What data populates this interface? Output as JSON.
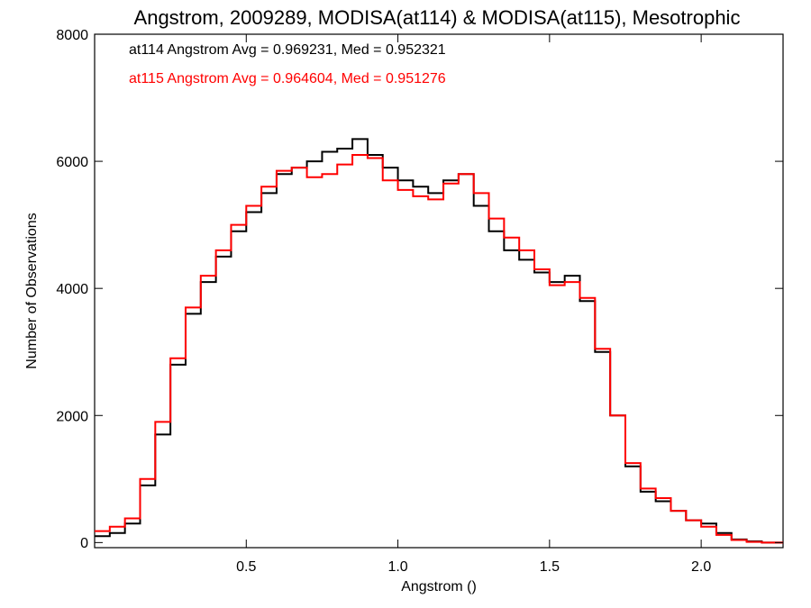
{
  "chart_data": {
    "type": "line",
    "step": true,
    "title": "Angstrom, 2009289, MODISA(at114) & MODISA(at115), Mesotrophic",
    "xlabel": "Angstrom ()",
    "ylabel": "Number of Observations",
    "xlim": [
      0.0,
      2.27
    ],
    "ylim": [
      -80,
      8000
    ],
    "xticks": [
      0.5,
      1.0,
      1.5,
      2.0
    ],
    "xtick_labels": [
      "0.5",
      "1.0",
      "1.5",
      "2.0"
    ],
    "yticks": [
      0,
      2000,
      4000,
      6000,
      8000
    ],
    "ytick_labels": [
      "0",
      "2000",
      "4000",
      "6000",
      "8000"
    ],
    "grid": false,
    "annotations": [
      {
        "text": "at114 Angstrom Avg = 0.969231, Med = 0.952321",
        "color": "#000000"
      },
      {
        "text": "at115 Angstrom Avg = 0.964604, Med = 0.951276",
        "color": "#ff0000"
      }
    ],
    "series": [
      {
        "color": "#000000",
        "x": [
          0.0,
          0.05,
          0.1,
          0.15,
          0.2,
          0.25,
          0.3,
          0.35,
          0.4,
          0.45,
          0.5,
          0.55,
          0.6,
          0.65,
          0.7,
          0.75,
          0.8,
          0.85,
          0.9,
          0.95,
          1.0,
          1.05,
          1.1,
          1.15,
          1.2,
          1.25,
          1.3,
          1.35,
          1.4,
          1.45,
          1.5,
          1.55,
          1.6,
          1.65,
          1.7,
          1.75,
          1.8,
          1.85,
          1.9,
          1.95,
          2.0,
          2.05,
          2.1,
          2.15,
          2.2,
          2.27
        ],
        "y": [
          100,
          150,
          300,
          900,
          1700,
          2800,
          3600,
          4100,
          4500,
          4900,
          5200,
          5500,
          5800,
          5900,
          6000,
          6150,
          6200,
          6350,
          6100,
          5900,
          5700,
          5600,
          5500,
          5700,
          5800,
          5300,
          4900,
          4600,
          4450,
          4250,
          4100,
          4200,
          3800,
          3000,
          2000,
          1200,
          800,
          650,
          500,
          350,
          300,
          150,
          50,
          20,
          0,
          0
        ]
      },
      {
        "color": "#ff0000",
        "x": [
          0.0,
          0.05,
          0.1,
          0.15,
          0.2,
          0.25,
          0.3,
          0.35,
          0.4,
          0.45,
          0.5,
          0.55,
          0.6,
          0.65,
          0.7,
          0.75,
          0.8,
          0.85,
          0.9,
          0.95,
          1.0,
          1.05,
          1.1,
          1.15,
          1.2,
          1.25,
          1.3,
          1.35,
          1.4,
          1.45,
          1.5,
          1.55,
          1.6,
          1.65,
          1.7,
          1.75,
          1.8,
          1.85,
          1.9,
          1.95,
          2.0,
          2.05,
          2.1,
          2.15,
          2.2,
          2.27
        ],
        "y": [
          180,
          250,
          380,
          1000,
          1900,
          2900,
          3700,
          4200,
          4600,
          5000,
          5300,
          5600,
          5850,
          5900,
          5750,
          5800,
          5950,
          6100,
          6050,
          5700,
          5550,
          5450,
          5400,
          5650,
          5800,
          5500,
          5100,
          4800,
          4600,
          4300,
          4050,
          4100,
          3850,
          3050,
          2000,
          1250,
          850,
          700,
          500,
          350,
          250,
          120,
          40,
          10,
          0,
          0
        ]
      }
    ]
  }
}
